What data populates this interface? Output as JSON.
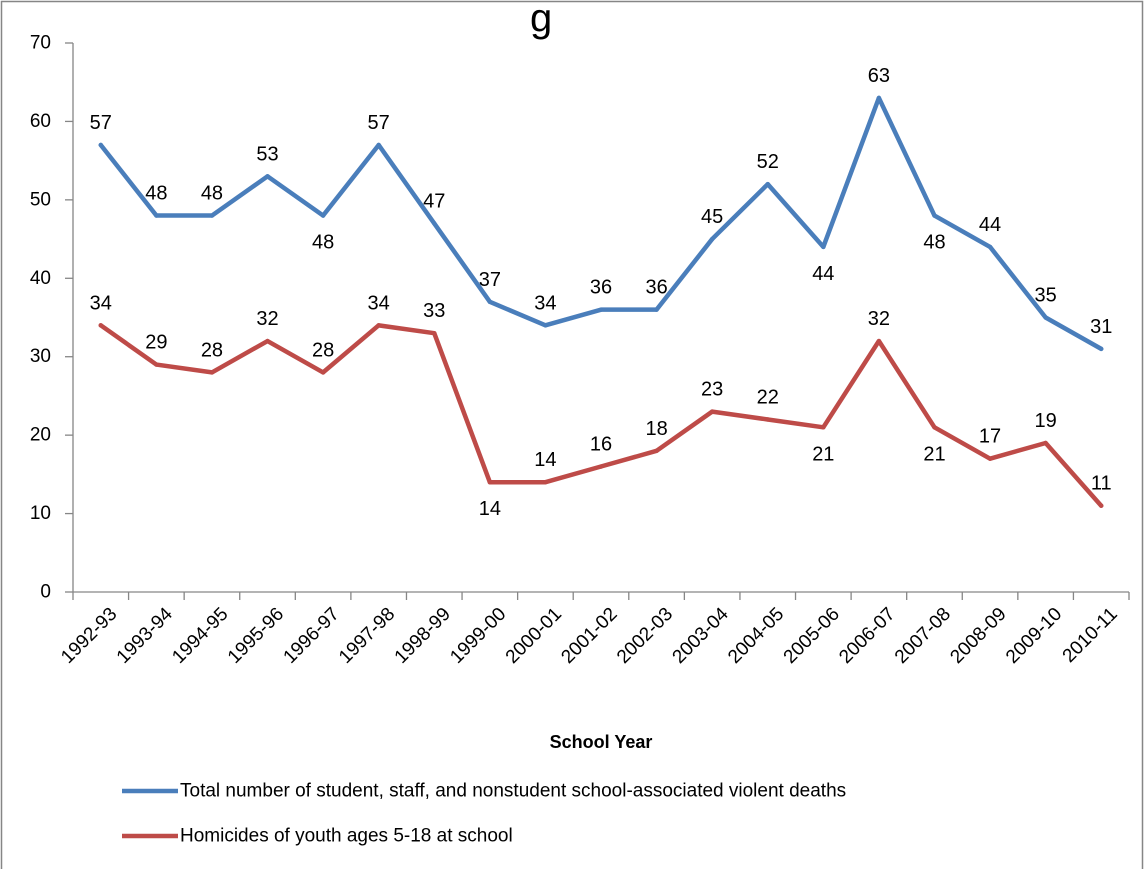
{
  "chart_data": {
    "type": "line",
    "title_fragment": "g",
    "xlabel": "School Year",
    "ylabel": "",
    "ylim": [
      0,
      70
    ],
    "yticks": [
      0,
      10,
      20,
      30,
      40,
      50,
      60,
      70
    ],
    "grid": false,
    "legend_position": "bottom",
    "categories": [
      "1992-93",
      "1993-94",
      "1994-95",
      "1995-96",
      "1996-97",
      "1997-98",
      "1998-99",
      "1999-00",
      "2000-01",
      "2001-02",
      "2002-03",
      "2003-04",
      "2004-05",
      "2005-06",
      "2006-07",
      "2007-08",
      "2008-09",
      "2009-10",
      "2010-11"
    ],
    "series": [
      {
        "name": "Total number of student, staff, and nonstudent school-associated violent deaths",
        "color": "#4a7ebb",
        "values": [
          57,
          48,
          48,
          53,
          48,
          57,
          47,
          37,
          34,
          36,
          36,
          45,
          52,
          44,
          63,
          48,
          44,
          35,
          31
        ],
        "label_pos": [
          "above",
          "above",
          "above",
          "above",
          "below",
          "above",
          "above",
          "above",
          "above",
          "above",
          "above",
          "above",
          "above",
          "below",
          "above",
          "below",
          "above",
          "above",
          "above"
        ]
      },
      {
        "name": "Homicides of youth ages 5-18 at school",
        "color": "#be4b48",
        "values": [
          34,
          29,
          28,
          32,
          28,
          34,
          33,
          14,
          14,
          16,
          18,
          23,
          22,
          21,
          32,
          21,
          17,
          19,
          11
        ],
        "label_pos": [
          "above",
          "above",
          "above",
          "above",
          "above",
          "above",
          "above",
          "below",
          "above",
          "above",
          "above",
          "above",
          "above",
          "below",
          "above",
          "below",
          "above",
          "above",
          "above"
        ]
      }
    ]
  }
}
